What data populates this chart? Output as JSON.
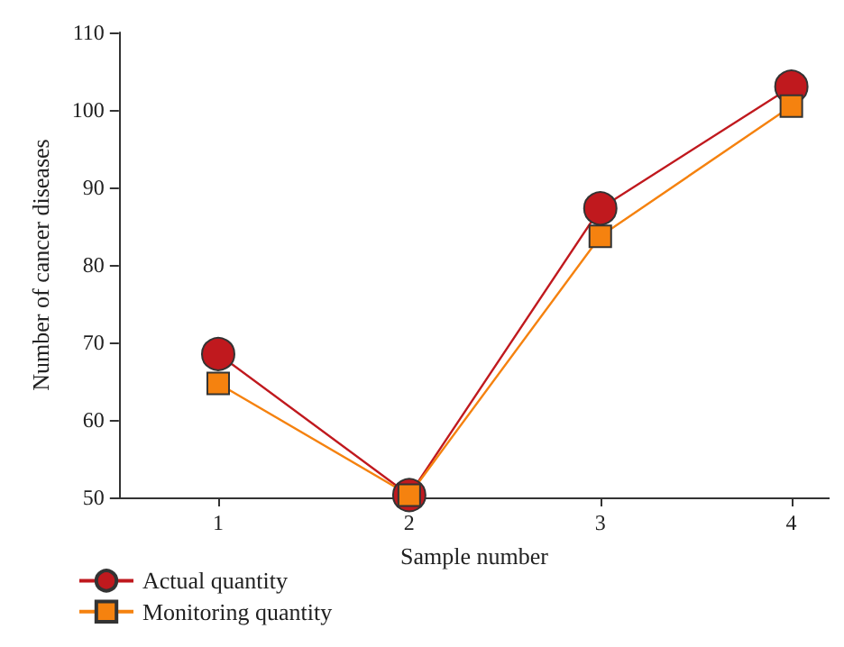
{
  "chart_data": {
    "type": "line",
    "xlabel": "Sample number",
    "ylabel": "Number of cancer diseases",
    "x": [
      1,
      2,
      3,
      4
    ],
    "xlim": [
      0.48,
      4.2
    ],
    "xticks": [
      1,
      2,
      3,
      4
    ],
    "ylim": [
      50,
      110
    ],
    "yticks": [
      50,
      60,
      70,
      80,
      90,
      100,
      110
    ],
    "series": [
      {
        "name": "Actual quantity",
        "color": "#c0191e",
        "marker": "circle",
        "values": [
          68.5,
          50.3,
          87.3,
          103
        ]
      },
      {
        "name": "Monitoring quantity",
        "color": "#f5820f",
        "marker": "square",
        "values": [
          64.7,
          50.3,
          83.7,
          100.5
        ]
      }
    ],
    "grid": false,
    "legend": "bottom left"
  }
}
